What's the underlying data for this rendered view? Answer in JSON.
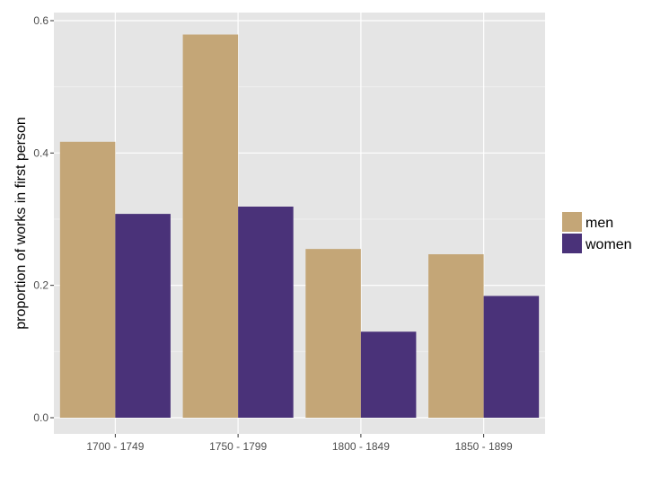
{
  "chart_data": {
    "type": "bar",
    "categories": [
      "1700 - 1749",
      "1750 - 1799",
      "1800 - 1849",
      "1850 - 1899"
    ],
    "series": [
      {
        "name": "men",
        "values": [
          0.417,
          0.579,
          0.255,
          0.247
        ],
        "color": "#c4a677"
      },
      {
        "name": "women",
        "values": [
          0.308,
          0.319,
          0.13,
          0.184
        ],
        "color": "#4a3279"
      }
    ],
    "title": "",
    "xlabel": "",
    "ylabel": "proportion of works in first person",
    "ylim": [
      0,
      0.6
    ],
    "yticks": [
      0.0,
      0.2,
      0.4,
      0.6
    ],
    "ytick_labels": [
      "0.0",
      "0.2",
      "0.4",
      "0.6"
    ],
    "grid": true,
    "legend_position": "right",
    "panel_background": "#e5e5e5",
    "grid_color": "#ffffff"
  }
}
